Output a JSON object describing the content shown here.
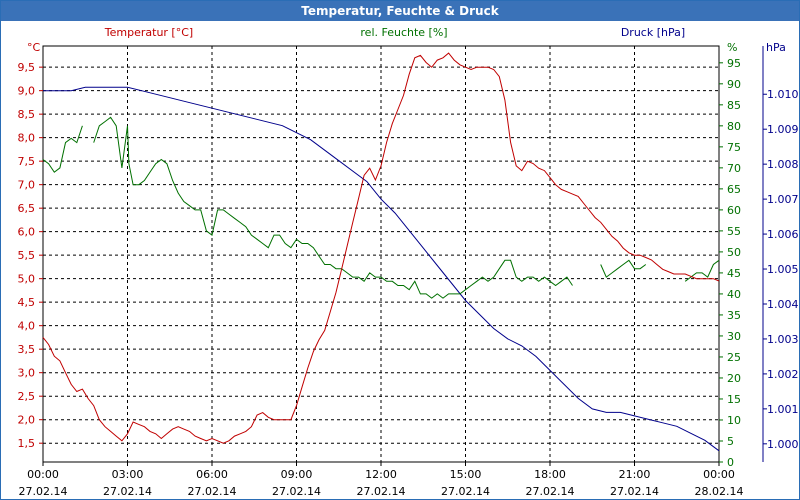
{
  "window": {
    "title": "Temperatur, Feuchte & Druck"
  },
  "chart_data": {
    "type": "line",
    "title": "Temperatur, Feuchte & Druck",
    "colors": {
      "temperature": "#c00000",
      "humidity": "#007000",
      "pressure": "#00008b",
      "axis": "#000000",
      "grid": "#000000"
    },
    "x_ticks": [
      {
        "t": 0,
        "time": "00:00",
        "date": "27.02.14"
      },
      {
        "t": 3,
        "time": "03:00",
        "date": "27.02.14"
      },
      {
        "t": 6,
        "time": "06:00",
        "date": "27.02.14"
      },
      {
        "t": 9,
        "time": "09:00",
        "date": "27.02.14"
      },
      {
        "t": 12,
        "time": "12:00",
        "date": "27.02.14"
      },
      {
        "t": 15,
        "time": "15:00",
        "date": "27.02.14"
      },
      {
        "t": 18,
        "time": "18:00",
        "date": "27.02.14"
      },
      {
        "t": 21,
        "time": "21:00",
        "date": "27.02.14"
      },
      {
        "t": 24,
        "time": "00:00",
        "date": "28.02.14"
      }
    ],
    "xlim": [
      0,
      24
    ],
    "axes": {
      "temperature": {
        "label": "Temperatur [°C]",
        "unit": "°C",
        "lim": [
          1.1,
          9.95
        ],
        "ticks": [
          "1,5",
          "2,0",
          "2,5",
          "3,0",
          "3,5",
          "4,0",
          "4,5",
          "5,0",
          "5,5",
          "6,0",
          "6,5",
          "7,0",
          "7,5",
          "8,0",
          "8,5",
          "9,0",
          "9,5"
        ],
        "tick_values": [
          1.5,
          2.0,
          2.5,
          3.0,
          3.5,
          4.0,
          4.5,
          5.0,
          5.5,
          6.0,
          6.5,
          7.0,
          7.5,
          8.0,
          8.5,
          9.0,
          9.5
        ]
      },
      "humidity": {
        "label": "rel. Feuchte [%]",
        "unit": "%",
        "lim": [
          0,
          99
        ],
        "ticks": [
          "0",
          "5",
          "10",
          "15",
          "20",
          "25",
          "30",
          "35",
          "40",
          "45",
          "50",
          "55",
          "60",
          "65",
          "70",
          "75",
          "80",
          "85",
          "90",
          "95"
        ],
        "tick_values": [
          0,
          5,
          10,
          15,
          20,
          25,
          30,
          35,
          40,
          45,
          50,
          55,
          60,
          65,
          70,
          75,
          80,
          85,
          90,
          95
        ]
      },
      "pressure": {
        "label": "Druck [hPa]",
        "unit": "hPa",
        "lim": [
          0.99948,
          1.01138
        ],
        "ticks": [
          "1.000",
          "1.001",
          "1.002",
          "1.003",
          "1.004",
          "1.005",
          "1.006",
          "1.007",
          "1.008",
          "1.009",
          "1.010"
        ],
        "tick_values": [
          1.0,
          1.001,
          1.002,
          1.003,
          1.004,
          1.005,
          1.006,
          1.007,
          1.008,
          1.009,
          1.01
        ]
      }
    },
    "series": [
      {
        "name": "Temperatur [°C]",
        "axis": "temperature",
        "x": [
          0,
          0.2,
          0.4,
          0.6,
          0.8,
          1.0,
          1.2,
          1.4,
          1.6,
          1.8,
          2.0,
          2.2,
          2.4,
          2.6,
          2.8,
          3.0,
          3.2,
          3.4,
          3.6,
          3.8,
          4.0,
          4.2,
          4.4,
          4.6,
          4.8,
          5.0,
          5.2,
          5.4,
          5.6,
          5.8,
          6.0,
          6.2,
          6.4,
          6.6,
          6.8,
          7.0,
          7.2,
          7.4,
          7.6,
          7.8,
          8.0,
          8.2,
          8.4,
          8.6,
          8.8,
          9.0,
          9.2,
          9.4,
          9.6,
          9.8,
          10.0,
          10.2,
          10.4,
          10.6,
          10.8,
          11.0,
          11.2,
          11.4,
          11.6,
          11.8,
          12.0,
          12.2,
          12.4,
          12.6,
          12.8,
          13.0,
          13.2,
          13.4,
          13.6,
          13.8,
          14.0,
          14.2,
          14.4,
          14.6,
          14.8,
          15.0,
          15.2,
          15.4,
          15.6,
          15.8,
          16.0,
          16.2,
          16.4,
          16.6,
          16.8,
          17.0,
          17.2,
          17.4,
          17.6,
          17.8,
          18.0,
          18.2,
          18.4,
          18.6,
          18.8,
          19.0,
          19.2,
          19.4,
          19.6,
          19.8,
          20.0,
          20.2,
          20.4,
          20.6,
          20.8,
          21.0,
          21.2,
          21.4,
          21.6,
          21.8,
          22.0,
          22.2,
          22.4,
          22.6,
          22.8,
          23.0,
          23.2,
          23.4,
          23.6,
          23.8,
          24.0
        ],
        "values": [
          3.75,
          3.6,
          3.35,
          3.25,
          3.0,
          2.75,
          2.6,
          2.65,
          2.45,
          2.3,
          2.0,
          1.85,
          1.75,
          1.65,
          1.55,
          1.7,
          1.95,
          1.9,
          1.85,
          1.75,
          1.7,
          1.6,
          1.7,
          1.8,
          1.85,
          1.8,
          1.75,
          1.65,
          1.6,
          1.55,
          1.6,
          1.55,
          1.5,
          1.55,
          1.65,
          1.7,
          1.75,
          1.85,
          2.1,
          2.15,
          2.05,
          2.0,
          2.0,
          2.0,
          2.0,
          2.3,
          2.7,
          3.1,
          3.45,
          3.7,
          3.9,
          4.3,
          4.7,
          5.2,
          5.7,
          6.2,
          6.7,
          7.2,
          7.35,
          7.1,
          7.4,
          7.9,
          8.3,
          8.6,
          8.9,
          9.35,
          9.7,
          9.75,
          9.6,
          9.5,
          9.65,
          9.7,
          9.8,
          9.65,
          9.55,
          9.5,
          9.45,
          9.5,
          9.5,
          9.5,
          9.45,
          9.3,
          8.8,
          7.9,
          7.4,
          7.3,
          7.5,
          7.45,
          7.35,
          7.3,
          7.15,
          7.0,
          6.9,
          6.85,
          6.8,
          6.75,
          6.6,
          6.45,
          6.3,
          6.2,
          6.05,
          5.9,
          5.8,
          5.65,
          5.55,
          5.5,
          5.5,
          5.45,
          5.4,
          5.3,
          5.2,
          5.15,
          5.1,
          5.1,
          5.1,
          5.05,
          5.0,
          5.0,
          5.0,
          5.0,
          4.95
        ]
      },
      {
        "name": "rel. Feuchte [%]",
        "axis": "humidity",
        "x": [
          0,
          0.2,
          0.4,
          0.6,
          0.8,
          1.0,
          1.2,
          1.4,
          1.6,
          1.8,
          2.0,
          2.2,
          2.4,
          2.6,
          2.8,
          3.0,
          3.05,
          3.2,
          3.4,
          3.6,
          3.8,
          4.0,
          4.2,
          4.4,
          4.6,
          4.8,
          5.0,
          5.2,
          5.4,
          5.6,
          5.8,
          6.0,
          6.2,
          6.4,
          6.6,
          6.8,
          7.0,
          7.2,
          7.4,
          7.6,
          7.8,
          8.0,
          8.2,
          8.4,
          8.6,
          8.8,
          9.0,
          9.2,
          9.4,
          9.6,
          9.8,
          10.0,
          10.2,
          10.4,
          10.6,
          10.8,
          11.0,
          11.2,
          11.4,
          11.6,
          11.8,
          12.0,
          12.2,
          12.4,
          12.6,
          12.8,
          13.0,
          13.2,
          13.4,
          13.6,
          13.8,
          14.0,
          14.2,
          14.4,
          14.6,
          14.8,
          15.0,
          15.2,
          15.4,
          15.6,
          15.8,
          16.0,
          16.2,
          16.4,
          16.6,
          16.8,
          17.0,
          17.2,
          17.4,
          17.6,
          17.8,
          18.0,
          18.2,
          18.4,
          18.6,
          18.8,
          19.0,
          19.2,
          19.4,
          19.6,
          19.8,
          20.0,
          20.2,
          20.4,
          20.6,
          20.8,
          21.0,
          21.2,
          21.4,
          21.6,
          21.8,
          22.0,
          22.2,
          22.4,
          22.6,
          22.8,
          23.0,
          23.2,
          23.4,
          23.6,
          23.8,
          24.0
        ],
        "values": [
          72,
          71,
          69,
          70,
          76,
          77,
          76,
          80,
          null,
          76,
          80,
          81,
          82,
          80,
          70,
          80,
          71,
          66,
          66,
          67,
          69,
          71,
          72,
          71,
          67,
          64,
          62,
          61,
          60,
          60,
          55,
          54,
          60,
          60,
          59,
          58,
          57,
          56,
          54,
          53,
          52,
          51,
          54,
          54,
          52,
          51,
          53,
          52,
          52,
          51,
          49,
          47,
          47,
          46,
          46,
          45,
          44,
          44,
          43,
          45,
          44,
          44,
          43,
          43,
          42,
          42,
          41,
          43,
          40,
          40,
          39,
          40,
          39,
          40,
          40,
          40,
          41,
          42,
          43,
          44,
          43,
          44,
          46,
          48,
          48,
          44,
          43,
          44,
          44,
          43,
          44,
          43,
          42,
          43,
          44,
          42,
          null,
          null,
          null,
          null,
          null,
          null,
          null,
          null,
          null,
          null,
          null,
          null,
          null,
          null,
          null,
          null,
          null,
          null,
          null,
          null,
          null,
          null,
          null,
          null,
          null,
          null
        ],
        "values2_x": [
          19.8,
          20.0,
          20.2,
          20.4,
          20.6,
          20.8,
          21.0,
          21.2,
          21.4
        ],
        "values2": [
          47,
          44,
          45,
          46,
          47,
          48,
          46,
          46,
          47
        ],
        "values3_x": [
          22.8,
          23.0,
          23.2,
          23.4,
          23.6,
          23.8,
          24.0
        ],
        "values3": [
          43,
          44,
          45,
          45,
          44,
          47,
          48
        ]
      },
      {
        "name": "Druck [hPa]",
        "axis": "pressure",
        "x": [
          0,
          0.5,
          1.0,
          1.5,
          2.0,
          2.5,
          3.0,
          3.5,
          4.0,
          4.5,
          5.0,
          5.5,
          6.0,
          6.5,
          7.0,
          7.5,
          8.0,
          8.5,
          9.0,
          9.5,
          10.0,
          10.5,
          11.0,
          11.5,
          12.0,
          12.5,
          13.0,
          13.5,
          14.0,
          14.5,
          15.0,
          15.5,
          16.0,
          16.5,
          17.0,
          17.5,
          18.0,
          18.5,
          19.0,
          19.5,
          20.0,
          20.5,
          21.0,
          21.5,
          22.0,
          22.5,
          23.0,
          23.5,
          24.0
        ],
        "values": [
          1.0101,
          1.0101,
          1.0101,
          1.0102,
          1.0102,
          1.0102,
          1.0102,
          1.0101,
          1.01,
          1.0099,
          1.0098,
          1.0097,
          1.0096,
          1.0095,
          1.0094,
          1.0093,
          1.0092,
          1.0091,
          1.0089,
          1.0087,
          1.0084,
          1.0081,
          1.0078,
          1.0075,
          1.007,
          1.0066,
          1.0061,
          1.0056,
          1.0051,
          1.0046,
          1.0041,
          1.0037,
          1.0033,
          1.003,
          1.0028,
          1.0025,
          1.0021,
          1.0017,
          1.0013,
          1.001,
          1.0009,
          1.0009,
          1.0008,
          1.0007,
          1.0006,
          1.0005,
          1.0003,
          1.0001,
          0.9998
        ]
      }
    ]
  }
}
